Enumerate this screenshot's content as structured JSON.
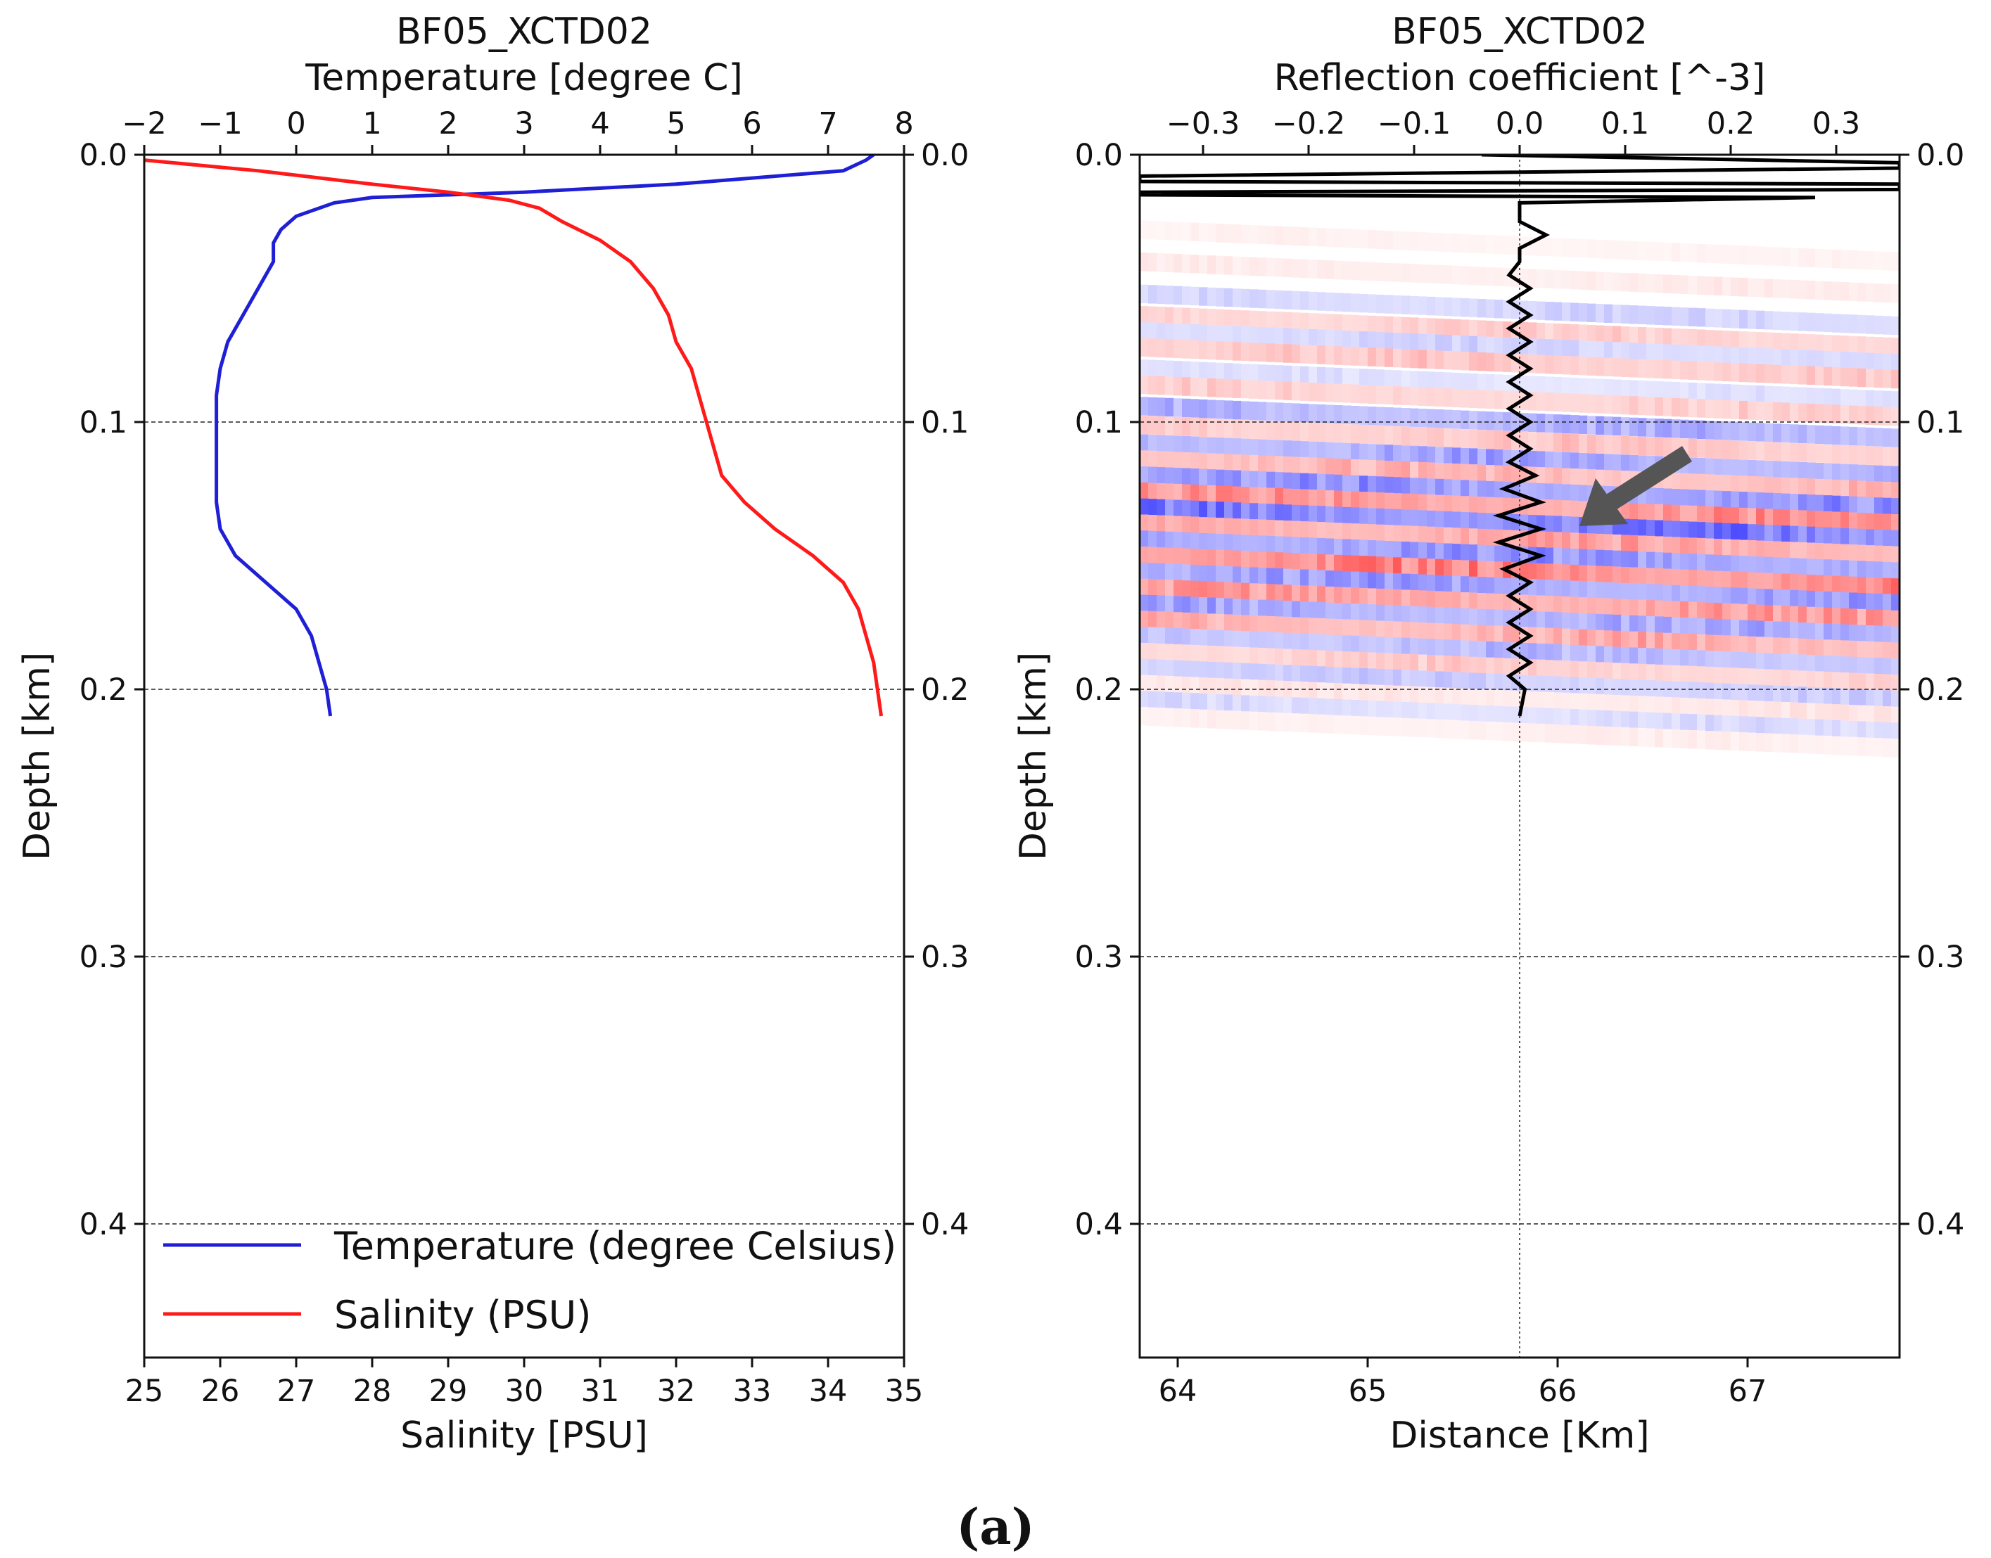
{
  "figure": {
    "caption": "(a)"
  },
  "chart_data": [
    {
      "type": "line",
      "title": "BF05_XCTD02",
      "subtitle": "Temperature [degree C]",
      "ylabel": "Depth [km]",
      "xlabel": "Salinity [PSU]",
      "x_top_ticks": [
        "−2",
        "−1",
        "0",
        "1",
        "2",
        "3",
        "4",
        "5",
        "6",
        "7",
        "8"
      ],
      "x_bottom_ticks": [
        "25",
        "26",
        "27",
        "28",
        "29",
        "30",
        "31",
        "32",
        "33",
        "34",
        "35"
      ],
      "y_ticks_left": [
        "0.0",
        "0.1",
        "0.2",
        "0.3",
        "0.4"
      ],
      "y_ticks_right": [
        "0.0",
        "0.1",
        "0.2",
        "0.3",
        "0.4"
      ],
      "xlim_top": [
        -2,
        8
      ],
      "xlim_bottom": [
        25,
        35
      ],
      "ylim": [
        0.45,
        0.0
      ],
      "grid": "horizontal dashed at 0.1, 0.2, 0.3, 0.4",
      "legend_position": "bottom",
      "series": [
        {
          "name": "Temperature (degree Celsius)",
          "axis": "top",
          "color": "#1f1fd6",
          "points": [
            [
              7.6,
              0.0
            ],
            [
              7.5,
              0.002
            ],
            [
              7.2,
              0.006
            ],
            [
              5.0,
              0.011
            ],
            [
              3.0,
              0.014
            ],
            [
              1.0,
              0.016
            ],
            [
              0.5,
              0.018
            ],
            [
              0.0,
              0.023
            ],
            [
              -0.2,
              0.028
            ],
            [
              -0.3,
              0.033
            ],
            [
              -0.3,
              0.04
            ],
            [
              -0.5,
              0.05
            ],
            [
              -0.7,
              0.06
            ],
            [
              -0.9,
              0.07
            ],
            [
              -1.0,
              0.08
            ],
            [
              -1.05,
              0.09
            ],
            [
              -1.05,
              0.1
            ],
            [
              -1.05,
              0.11
            ],
            [
              -1.05,
              0.12
            ],
            [
              -1.05,
              0.13
            ],
            [
              -1.0,
              0.14
            ],
            [
              -0.8,
              0.15
            ],
            [
              -0.4,
              0.16
            ],
            [
              0.0,
              0.17
            ],
            [
              0.2,
              0.18
            ],
            [
              0.3,
              0.19
            ],
            [
              0.4,
              0.2
            ],
            [
              0.45,
              0.21
            ]
          ]
        },
        {
          "name": "Salinity (PSU)",
          "axis": "bottom",
          "color": "#ff1a1a",
          "points": [
            [
              25.0,
              0.002
            ],
            [
              26.5,
              0.006
            ],
            [
              28.0,
              0.011
            ],
            [
              29.0,
              0.014
            ],
            [
              29.8,
              0.017
            ],
            [
              30.2,
              0.02
            ],
            [
              30.5,
              0.025
            ],
            [
              31.0,
              0.032
            ],
            [
              31.4,
              0.04
            ],
            [
              31.7,
              0.05
            ],
            [
              31.9,
              0.06
            ],
            [
              32.0,
              0.07
            ],
            [
              32.2,
              0.08
            ],
            [
              32.3,
              0.09
            ],
            [
              32.4,
              0.1
            ],
            [
              32.5,
              0.11
            ],
            [
              32.6,
              0.12
            ],
            [
              32.9,
              0.13
            ],
            [
              33.3,
              0.14
            ],
            [
              33.8,
              0.15
            ],
            [
              34.2,
              0.16
            ],
            [
              34.4,
              0.17
            ],
            [
              34.5,
              0.18
            ],
            [
              34.6,
              0.19
            ],
            [
              34.65,
              0.2
            ],
            [
              34.7,
              0.21
            ]
          ]
        }
      ]
    },
    {
      "type": "heatmap",
      "title": "BF05_XCTD02",
      "subtitle": "Reflection coefficient [^-3]",
      "ylabel": "Depth [km]",
      "xlabel": "Distance [Km]",
      "x_top_ticks": [
        "−0.3",
        "−0.2",
        "−0.1",
        "0.0",
        "0.1",
        "0.2",
        "0.3"
      ],
      "x_bottom_ticks": [
        "64",
        "65",
        "66",
        "67"
      ],
      "y_ticks_left": [
        "0.0",
        "0.1",
        "0.2",
        "0.3",
        "0.4"
      ],
      "y_ticks_right": [
        "0.0",
        "0.1",
        "0.2",
        "0.3",
        "0.4"
      ],
      "xlim_top": [
        -0.36,
        0.36
      ],
      "xlim_bottom": [
        63.8,
        67.8
      ],
      "ylim": [
        0.45,
        0.0
      ],
      "grid": "horizontal dashed at 0.1, 0.2, 0.3, 0.4; vertical dotted at 0.0",
      "colormap": "blue-white-red (seismic)",
      "heatmap_extent_depth_km": [
        0.025,
        0.215
      ],
      "annotation": "gray arrow pointing toward about (0.05, 0.14 km)",
      "series": [
        {
          "name": "Reflection coefficient",
          "axis": "top",
          "color": "#000000",
          "points": [
            [
              0.0,
              0.0
            ],
            [
              -0.036,
              0.0
            ],
            [
              0.36,
              0.003
            ],
            [
              0.36,
              0.005
            ],
            [
              -0.36,
              0.008
            ],
            [
              -0.36,
              0.01
            ],
            [
              0.36,
              0.011
            ],
            [
              0.36,
              0.013
            ],
            [
              -0.36,
              0.014
            ],
            [
              -0.36,
              0.015
            ],
            [
              0.28,
              0.016
            ],
            [
              0.0,
              0.018
            ],
            [
              0.0,
              0.025
            ],
            [
              0.025,
              0.03
            ],
            [
              0.0,
              0.035
            ],
            [
              0.0,
              0.04
            ],
            [
              -0.01,
              0.045
            ],
            [
              0.01,
              0.05
            ],
            [
              -0.01,
              0.055
            ],
            [
              0.01,
              0.06
            ],
            [
              -0.01,
              0.065
            ],
            [
              0.01,
              0.07
            ],
            [
              -0.01,
              0.075
            ],
            [
              0.01,
              0.08
            ],
            [
              -0.01,
              0.085
            ],
            [
              0.01,
              0.09
            ],
            [
              -0.01,
              0.095
            ],
            [
              0.01,
              0.1
            ],
            [
              -0.01,
              0.105
            ],
            [
              0.01,
              0.11
            ],
            [
              -0.01,
              0.115
            ],
            [
              0.015,
              0.12
            ],
            [
              -0.015,
              0.125
            ],
            [
              0.02,
              0.13
            ],
            [
              -0.02,
              0.135
            ],
            [
              0.02,
              0.14
            ],
            [
              -0.02,
              0.145
            ],
            [
              0.02,
              0.15
            ],
            [
              -0.015,
              0.155
            ],
            [
              0.01,
              0.16
            ],
            [
              -0.01,
              0.165
            ],
            [
              0.01,
              0.17
            ],
            [
              -0.01,
              0.175
            ],
            [
              0.01,
              0.18
            ],
            [
              -0.01,
              0.185
            ],
            [
              0.01,
              0.19
            ],
            [
              -0.01,
              0.195
            ],
            [
              0.005,
              0.2
            ],
            [
              0.0,
              0.21
            ]
          ]
        }
      ],
      "heatmap_bands": [
        {
          "depth": 0.028,
          "value": 0.08
        },
        {
          "depth": 0.04,
          "value": 0.12
        },
        {
          "depth": 0.052,
          "value": -0.25
        },
        {
          "depth": 0.06,
          "value": 0.3
        },
        {
          "depth": 0.066,
          "value": -0.25
        },
        {
          "depth": 0.072,
          "value": 0.35
        },
        {
          "depth": 0.08,
          "value": -0.18
        },
        {
          "depth": 0.086,
          "value": 0.3
        },
        {
          "depth": 0.094,
          "value": -0.45
        },
        {
          "depth": 0.101,
          "value": 0.35
        },
        {
          "depth": 0.108,
          "value": -0.5
        },
        {
          "depth": 0.114,
          "value": 0.45
        },
        {
          "depth": 0.12,
          "value": -0.6
        },
        {
          "depth": 0.126,
          "value": 0.65
        },
        {
          "depth": 0.132,
          "value": -0.75
        },
        {
          "depth": 0.138,
          "value": 0.55
        },
        {
          "depth": 0.144,
          "value": -0.6
        },
        {
          "depth": 0.15,
          "value": 0.75
        },
        {
          "depth": 0.156,
          "value": -0.55
        },
        {
          "depth": 0.162,
          "value": 0.6
        },
        {
          "depth": 0.168,
          "value": -0.5
        },
        {
          "depth": 0.174,
          "value": 0.5
        },
        {
          "depth": 0.18,
          "value": -0.4
        },
        {
          "depth": 0.186,
          "value": 0.3
        },
        {
          "depth": 0.192,
          "value": -0.3
        },
        {
          "depth": 0.198,
          "value": 0.15
        },
        {
          "depth": 0.204,
          "value": -0.2
        },
        {
          "depth": 0.21,
          "value": 0.1
        }
      ]
    }
  ]
}
